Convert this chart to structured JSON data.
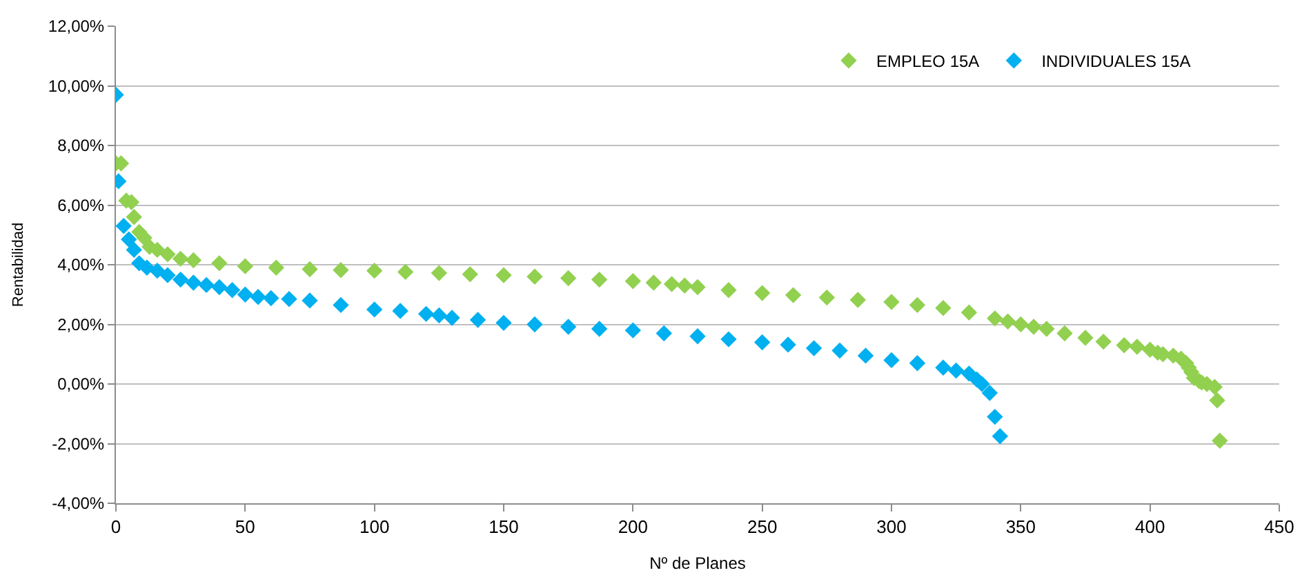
{
  "chart_data": {
    "type": "scatter",
    "xlabel": "Nº de Planes",
    "ylabel": "Rentabilidad",
    "xlim": [
      0,
      450
    ],
    "xticks": [
      0,
      50,
      100,
      150,
      200,
      250,
      300,
      350,
      400,
      450
    ],
    "ylim": [
      -4,
      12
    ],
    "yticks": [
      {
        "value": -4,
        "label": "-4,00%"
      },
      {
        "value": -2,
        "label": "-2,00%"
      },
      {
        "value": 0,
        "label": "0,00%"
      },
      {
        "value": 2,
        "label": "2,00%"
      },
      {
        "value": 4,
        "label": "4,00%"
      },
      {
        "value": 6,
        "label": "6,00%"
      },
      {
        "value": 8,
        "label": "8,00%"
      },
      {
        "value": 10,
        "label": "10,00%"
      },
      {
        "value": 12,
        "label": "12,00%"
      }
    ],
    "grid": "y",
    "legend": "top right",
    "marker": "diamond",
    "series": [
      {
        "name": "EMPLEO 15A",
        "color": "#92d050",
        "x": [
          0,
          2,
          4,
          6,
          7,
          9,
          11,
          13,
          16,
          20,
          25,
          30,
          40,
          50,
          62,
          75,
          87,
          100,
          112,
          125,
          137,
          150,
          162,
          175,
          187,
          200,
          208,
          215,
          220,
          225,
          237,
          250,
          262,
          275,
          287,
          300,
          310,
          320,
          330,
          340,
          345,
          350,
          355,
          360,
          367,
          375,
          382,
          390,
          395,
          400,
          403,
          405,
          409,
          412,
          414,
          415,
          416,
          417,
          419,
          420,
          422,
          425,
          426,
          427
        ],
        "values": [
          7.4,
          7.4,
          6.15,
          6.1,
          5.6,
          5.1,
          4.9,
          4.6,
          4.5,
          4.35,
          4.2,
          4.15,
          4.05,
          3.95,
          3.9,
          3.85,
          3.82,
          3.8,
          3.76,
          3.72,
          3.68,
          3.65,
          3.6,
          3.55,
          3.5,
          3.45,
          3.4,
          3.35,
          3.3,
          3.25,
          3.15,
          3.05,
          2.98,
          2.9,
          2.82,
          2.75,
          2.65,
          2.55,
          2.4,
          2.2,
          2.1,
          2.0,
          1.92,
          1.85,
          1.7,
          1.55,
          1.42,
          1.3,
          1.25,
          1.15,
          1.05,
          1.0,
          0.95,
          0.85,
          0.7,
          0.55,
          0.4,
          0.2,
          0.1,
          0.05,
          0.0,
          -0.1,
          -0.55,
          -1.9
        ]
      },
      {
        "name": "INDIVIDUALES 15A",
        "color": "#00b0f0",
        "x": [
          0,
          1,
          3,
          5,
          7,
          9,
          12,
          16,
          20,
          25,
          30,
          35,
          40,
          45,
          50,
          55,
          60,
          67,
          75,
          87,
          100,
          110,
          120,
          125,
          130,
          140,
          150,
          162,
          175,
          187,
          200,
          212,
          225,
          237,
          250,
          260,
          270,
          280,
          290,
          300,
          310,
          320,
          325,
          330,
          333,
          335,
          338,
          340,
          342
        ],
        "values": [
          9.7,
          6.8,
          5.3,
          4.85,
          4.5,
          4.05,
          3.9,
          3.8,
          3.65,
          3.5,
          3.4,
          3.32,
          3.25,
          3.15,
          3.0,
          2.92,
          2.88,
          2.85,
          2.8,
          2.65,
          2.5,
          2.45,
          2.35,
          2.3,
          2.22,
          2.15,
          2.05,
          2.0,
          1.92,
          1.85,
          1.8,
          1.7,
          1.6,
          1.5,
          1.4,
          1.32,
          1.2,
          1.12,
          0.95,
          0.8,
          0.7,
          0.55,
          0.45,
          0.35,
          0.15,
          0.0,
          -0.3,
          -1.1,
          -1.75
        ]
      }
    ]
  }
}
